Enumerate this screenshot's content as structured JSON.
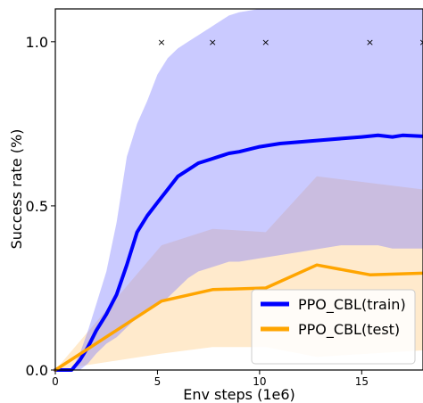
{
  "chart_data": {
    "type": "line",
    "title": "",
    "xlabel": "Env steps (1e6)",
    "ylabel": "Success rate (%)",
    "xlim": [
      0,
      18
    ],
    "ylim": [
      0,
      1.1
    ],
    "x_ticks": [
      0,
      5,
      10,
      15
    ],
    "y_ticks": [
      0.0,
      0.5,
      1.0
    ],
    "x_tick_labels": [
      "0",
      "5",
      "10",
      "15"
    ],
    "y_tick_labels": [
      "0.0",
      "0.5",
      "1.0"
    ],
    "grid": false,
    "legend_position": "bottom-right",
    "series": [
      {
        "name": "PPO_CBL(train)",
        "color": "#0000ff",
        "band_color": "#7b7bff",
        "x": [
          0,
          0.8,
          1.2,
          1.6,
          2.0,
          2.5,
          3.0,
          3.5,
          4.0,
          4.5,
          5.0,
          5.5,
          6.0,
          6.5,
          7.0,
          7.5,
          8.0,
          8.5,
          9.0,
          10.0,
          11.0,
          12.0,
          13.0,
          14.0,
          15.0,
          15.8,
          16.5,
          17.0,
          18.0
        ],
        "values": [
          0.0,
          0.0,
          0.03,
          0.07,
          0.12,
          0.17,
          0.23,
          0.32,
          0.42,
          0.47,
          0.51,
          0.55,
          0.59,
          0.61,
          0.63,
          0.64,
          0.65,
          0.66,
          0.665,
          0.68,
          0.69,
          0.695,
          0.7,
          0.705,
          0.71,
          0.715,
          0.71,
          0.715,
          0.712
        ],
        "upper": [
          0.0,
          0.0,
          0.05,
          0.12,
          0.2,
          0.3,
          0.45,
          0.65,
          0.75,
          0.82,
          0.9,
          0.95,
          0.98,
          1.0,
          1.02,
          1.04,
          1.06,
          1.08,
          1.09,
          1.1,
          1.1,
          1.1,
          1.1,
          1.1,
          1.1,
          1.1,
          1.1,
          1.1,
          1.1
        ],
        "lower": [
          0.0,
          0.0,
          0.0,
          0.02,
          0.05,
          0.08,
          0.1,
          0.13,
          0.16,
          0.18,
          0.2,
          0.22,
          0.25,
          0.28,
          0.3,
          0.31,
          0.32,
          0.33,
          0.33,
          0.34,
          0.35,
          0.36,
          0.37,
          0.38,
          0.38,
          0.38,
          0.37,
          0.37,
          0.37
        ]
      },
      {
        "name": "PPO_CBL(test)",
        "color": "#ffa500",
        "band_color": "#ffd699",
        "x": [
          0,
          5.2,
          7.7,
          10.3,
          12.8,
          15.4,
          18.0
        ],
        "values": [
          0.0,
          0.21,
          0.245,
          0.25,
          0.32,
          0.29,
          0.295
        ],
        "upper": [
          0.0,
          0.38,
          0.43,
          0.42,
          0.59,
          0.57,
          0.55
        ],
        "lower": [
          0.0,
          0.05,
          0.07,
          0.07,
          0.04,
          0.05,
          0.06
        ]
      }
    ],
    "markers": {
      "symbol": "×",
      "x": [
        5.2,
        7.7,
        10.3,
        15.4,
        18.0
      ],
      "y": [
        1.0,
        1.0,
        1.0,
        1.0,
        1.0
      ]
    }
  }
}
